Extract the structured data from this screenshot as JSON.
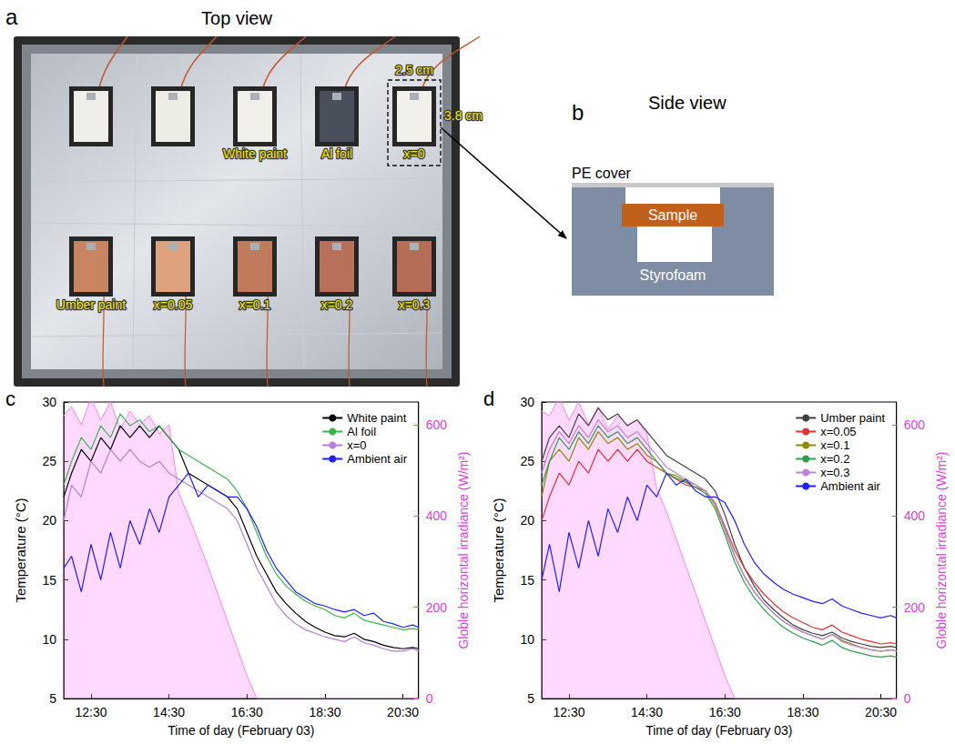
{
  "panels": {
    "a": {
      "panel_label": "a",
      "title": "Top view",
      "width_label": "2.5 cm",
      "height_label": "3.8 cm",
      "top_row": [
        null,
        null,
        "White paint",
        "Al foil",
        "x=0"
      ],
      "bottom_row": [
        "Umber paint",
        "x=0.05",
        "x=0.1",
        "x=0.2",
        "x=0.3"
      ]
    },
    "b": {
      "panel_label": "b",
      "title": "Side view",
      "cover_label": "PE cover",
      "sample_label": "Sample",
      "base_label": "Styrofoam"
    }
  },
  "chart_data": [
    {
      "type": "line",
      "panel_label": "c",
      "x_label": "Time of day (February 03)",
      "y_label": "Temperature (°C)",
      "y2_label": "Globle horizontal irradiance (W/m²)",
      "xlim": [
        11.8,
        20.9
      ],
      "xticks": [
        {
          "value": 12.5,
          "label": "12:30"
        },
        {
          "value": 14.5,
          "label": "14:30"
        },
        {
          "value": 16.5,
          "label": "16:30"
        },
        {
          "value": 18.5,
          "label": "18:30"
        },
        {
          "value": 20.5,
          "label": "20:30"
        }
      ],
      "ylim": [
        5,
        30
      ],
      "yticks": [
        5,
        10,
        15,
        20,
        25,
        30
      ],
      "y2lim": [
        0,
        650
      ],
      "y2ticks": [
        0,
        200,
        400,
        600
      ],
      "grid": false,
      "legend": "upper right",
      "x": [
        11.8,
        12,
        12.25,
        12.5,
        12.75,
        13,
        13.25,
        13.5,
        13.75,
        14,
        14.25,
        14.5,
        14.75,
        15,
        15.25,
        15.5,
        15.75,
        16,
        16.25,
        16.5,
        16.75,
        17,
        17.25,
        17.5,
        17.75,
        18,
        18.25,
        18.5,
        18.75,
        19,
        19.25,
        19.5,
        19.75,
        20,
        20.25,
        20.5,
        20.75,
        20.9
      ],
      "irradiance": {
        "axis": "y2",
        "type": "area",
        "color": "#ff80ff",
        "values": [
          620,
          640,
          600,
          660,
          610,
          650,
          590,
          630,
          600,
          620,
          580,
          600,
          450,
          400,
          345,
          290,
          230,
          170,
          110,
          50,
          0,
          0,
          0,
          0,
          0,
          0,
          0,
          0,
          0,
          0,
          0,
          0,
          0,
          0,
          0,
          0,
          0,
          0
        ]
      },
      "series": [
        {
          "name": "White paint",
          "color": "#000000",
          "values": [
            22,
            24,
            26,
            25,
            27,
            26,
            28,
            27,
            28,
            27,
            28,
            27,
            26,
            24,
            23.5,
            23,
            22.5,
            22,
            21,
            19,
            17,
            15.5,
            14,
            13,
            12.2,
            11.5,
            11,
            10.6,
            10.3,
            10.2,
            10.5,
            10,
            9.8,
            9.5,
            9.3,
            9.2,
            9.3,
            9.2
          ]
        },
        {
          "name": "Al foil",
          "color": "#3cb44b",
          "values": [
            23,
            25,
            27,
            26,
            28,
            27,
            29,
            28,
            28.5,
            27.5,
            28,
            27,
            26,
            25.5,
            25,
            24.5,
            24,
            23.5,
            22.5,
            21,
            19,
            17,
            15.5,
            14.5,
            13.8,
            13.2,
            12.8,
            12.5,
            12,
            11.8,
            12.2,
            11.6,
            11.4,
            11.2,
            11,
            10.8,
            10.9,
            10.8
          ]
        },
        {
          "name": "x=0",
          "color": "#b57edc",
          "values": [
            20,
            23,
            22,
            25,
            24,
            26,
            25,
            26,
            25,
            24.5,
            25,
            24,
            23.5,
            23,
            22.5,
            22,
            21.5,
            21,
            20,
            18,
            16,
            14.5,
            13,
            12,
            11.3,
            10.8,
            10.5,
            10.2,
            10,
            9.8,
            10.2,
            9.7,
            9.5,
            9.2,
            9,
            9,
            9.2,
            9
          ]
        },
        {
          "name": "Ambient air",
          "color": "#1f1fff",
          "values": [
            16,
            17,
            14,
            18,
            15,
            19,
            16,
            20,
            18,
            21,
            19,
            22,
            23,
            24,
            22,
            23,
            22.5,
            22,
            22,
            21,
            19.5,
            17.5,
            16,
            15,
            14,
            13.5,
            13,
            12.8,
            12.5,
            12.3,
            12.5,
            12,
            12.2,
            11.5,
            11.3,
            11,
            11.2,
            11
          ]
        }
      ]
    },
    {
      "type": "line",
      "panel_label": "d",
      "x_label": "Time of day (February 03)",
      "y_label": "Temperature (°C)",
      "y2_label": "Globle horizontal irradiance (W/m²)",
      "xlim": [
        11.8,
        20.9
      ],
      "xticks": [
        {
          "value": 12.5,
          "label": "12:30"
        },
        {
          "value": 14.5,
          "label": "14:30"
        },
        {
          "value": 16.5,
          "label": "16:30"
        },
        {
          "value": 18.5,
          "label": "18:30"
        },
        {
          "value": 20.5,
          "label": "20:30"
        }
      ],
      "ylim": [
        5,
        30
      ],
      "yticks": [
        5,
        10,
        15,
        20,
        25,
        30
      ],
      "y2lim": [
        0,
        650
      ],
      "y2ticks": [
        0,
        200,
        400,
        600
      ],
      "grid": false,
      "legend": "upper right",
      "x": [
        11.8,
        12,
        12.25,
        12.5,
        12.75,
        13,
        13.25,
        13.5,
        13.75,
        14,
        14.25,
        14.5,
        14.75,
        15,
        15.25,
        15.5,
        15.75,
        16,
        16.25,
        16.5,
        16.75,
        17,
        17.25,
        17.5,
        17.75,
        18,
        18.25,
        18.5,
        18.75,
        19,
        19.25,
        19.5,
        19.75,
        20,
        20.25,
        20.5,
        20.75,
        20.9
      ],
      "irradiance": {
        "axis": "y2",
        "type": "area",
        "color": "#ff80ff",
        "values": [
          630,
          620,
          660,
          610,
          650,
          600,
          640,
          590,
          620,
          600,
          610,
          580,
          460,
          410,
          350,
          290,
          230,
          170,
          110,
          50,
          0,
          0,
          0,
          0,
          0,
          0,
          0,
          0,
          0,
          0,
          0,
          0,
          0,
          0,
          0,
          0,
          0,
          0
        ]
      },
      "series": [
        {
          "name": "Umber paint",
          "color": "#404040",
          "values": [
            25,
            27,
            28,
            27,
            29,
            28,
            29.5,
            28.5,
            29,
            28,
            28.5,
            27.5,
            26.5,
            25.5,
            25,
            24.5,
            24,
            23.5,
            22.5,
            20.5,
            18,
            16,
            14.5,
            13.3,
            12.5,
            11.8,
            11.2,
            10.8,
            10.5,
            10.3,
            10.6,
            10.1,
            9.8,
            9.6,
            9.4,
            9.3,
            9.4,
            9.3
          ]
        },
        {
          "name": "x=0.05",
          "color": "#e53030",
          "values": [
            20,
            22,
            24,
            23,
            25,
            24,
            26,
            25,
            26,
            25,
            26,
            25,
            24.5,
            24,
            23.5,
            23,
            22.8,
            22.5,
            21.5,
            19.5,
            17.5,
            16,
            14.8,
            13.8,
            13,
            12.3,
            11.8,
            11.4,
            11,
            10.8,
            11.2,
            10.6,
            10.3,
            10,
            9.8,
            9.6,
            9.7,
            9.6
          ]
        },
        {
          "name": "x=0.1",
          "color": "#8b8b00",
          "values": [
            22,
            25,
            26,
            25,
            27,
            26,
            27.5,
            26.5,
            27,
            26,
            26.5,
            25.5,
            25,
            24,
            23.8,
            23.3,
            23,
            22.5,
            21.3,
            19.2,
            17,
            15.3,
            14,
            13,
            12.2,
            11.5,
            11,
            10.6,
            10.3,
            10,
            10.4,
            9.9,
            9.6,
            9.3,
            9.1,
            9,
            9.1,
            9
          ]
        },
        {
          "name": "x=0.2",
          "color": "#2e9e4e",
          "values": [
            23,
            25,
            27,
            26,
            27.5,
            26.5,
            28,
            27,
            27.5,
            26.5,
            27,
            26,
            25,
            24,
            23.6,
            23.2,
            22.8,
            22.3,
            21,
            18.8,
            16.5,
            14.8,
            13.5,
            12.5,
            11.7,
            11,
            10.5,
            10.1,
            9.8,
            9.5,
            9.9,
            9.3,
            9,
            8.8,
            8.6,
            8.5,
            8.6,
            8.5
          ]
        },
        {
          "name": "x=0.3",
          "color": "#c080e0",
          "values": [
            24,
            26,
            27.5,
            26.5,
            28,
            27,
            28.5,
            27.5,
            28,
            27,
            27.5,
            26.5,
            25.5,
            24.5,
            24,
            23.5,
            23,
            22.5,
            21.5,
            19.3,
            17,
            15.3,
            14,
            13,
            12.2,
            11.5,
            11,
            10.6,
            10.3,
            10,
            10.4,
            9.8,
            9.5,
            9.3,
            9.1,
            9,
            9.1,
            9
          ]
        },
        {
          "name": "Ambient air",
          "color": "#1f1fff",
          "values": [
            15,
            18,
            14,
            19,
            16,
            20,
            17,
            21,
            19,
            22,
            20,
            23,
            22,
            24,
            23,
            23.5,
            22.5,
            22,
            22,
            21.5,
            20,
            18,
            16.5,
            15.5,
            14.8,
            14.2,
            13.8,
            13.5,
            13.2,
            13,
            13.4,
            12.8,
            12.5,
            12.2,
            12,
            11.8,
            12,
            11.8
          ]
        }
      ]
    }
  ]
}
